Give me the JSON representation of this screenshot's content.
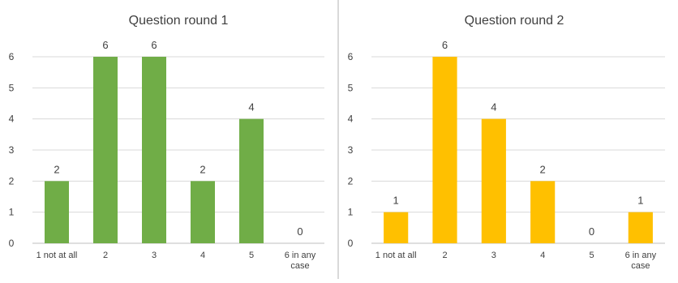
{
  "chart_data": [
    {
      "type": "bar",
      "title": "Question round 1",
      "xlabel": "",
      "ylabel": "",
      "categories": [
        "1 not at all",
        "2",
        "3",
        "4",
        "5",
        "6 in any case"
      ],
      "values": [
        2,
        6,
        6,
        2,
        4,
        0
      ],
      "yticks": [
        "0",
        "1",
        "2",
        "3",
        "4",
        "5",
        "6"
      ],
      "ylim": [
        0,
        6
      ],
      "grid": true,
      "color": "#70ad47"
    },
    {
      "type": "bar",
      "title": "Question round 2",
      "xlabel": "",
      "ylabel": "",
      "categories": [
        "1 not at all",
        "2",
        "3",
        "4",
        "5",
        "6 in any case"
      ],
      "values": [
        1,
        6,
        4,
        2,
        0,
        1
      ],
      "yticks": [
        "0",
        "1",
        "2",
        "3",
        "4",
        "5",
        "6"
      ],
      "ylim": [
        0,
        6
      ],
      "grid": true,
      "color": "#ffc000"
    }
  ]
}
